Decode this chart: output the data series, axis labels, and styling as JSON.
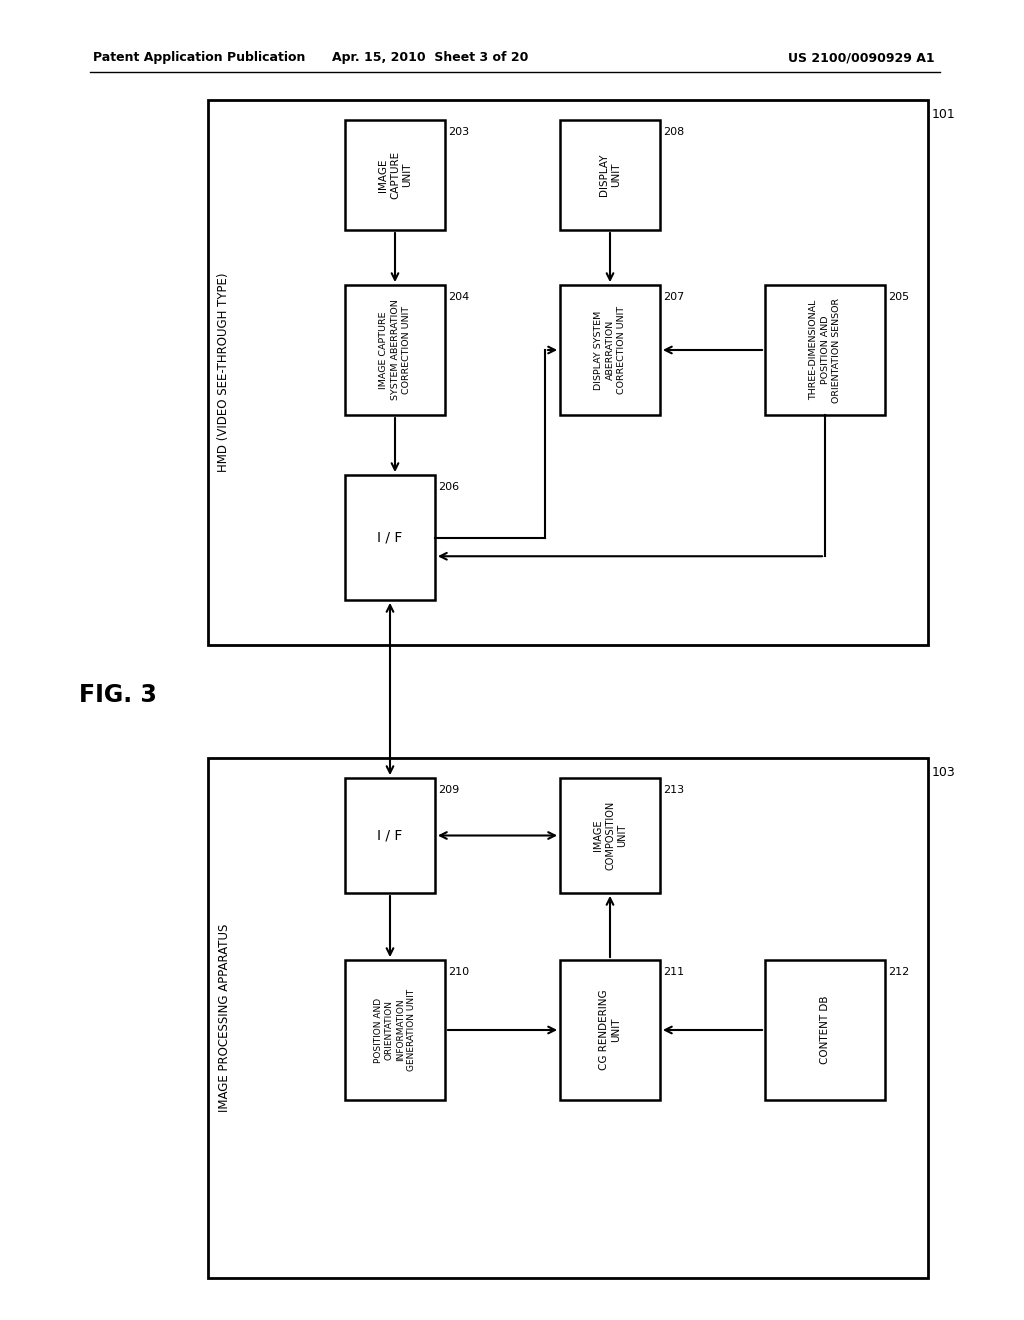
{
  "bg_color": "#ffffff",
  "header_left": "Patent Application Publication",
  "header_center": "Apr. 15, 2010  Sheet 3 of 20",
  "header_right": "US 2100/0090929 A1",
  "fig_label": "FIG. 3",
  "top_box_label": "101",
  "top_box_group_label": "HMD (VIDEO SEE-THROUGH TYPE)",
  "bottom_box_label": "103",
  "bottom_box_group_label": "IMAGE PROCESSING APPARATUS",
  "b203_label": "IMAGE\nCAPTURE\nUNIT",
  "b204_label": "IMAGE CAPTURE\nSYSTEM ABERRATION\nCORRECTION UNIT",
  "b205_label": "THREE-DIMENSIONAL\nPOSITION AND\nORIENTATION SENSOR",
  "b206_label": "I / F",
  "b207_label": "DISPLAY SYSTEM\nABERRATION\nCORRECTION UNIT",
  "b208_label": "DISPLAY\nUNIT",
  "b209_label": "I / F",
  "b210_label": "POSITION AND\nORIENTATION\nINFORMATION\nGENERATION UNIT",
  "b211_label": "CG RENDERING\nUNIT",
  "b212_label": "CONTENT DB",
  "b213_label": "IMAGE\nCOMPOSITION\nUNIT"
}
